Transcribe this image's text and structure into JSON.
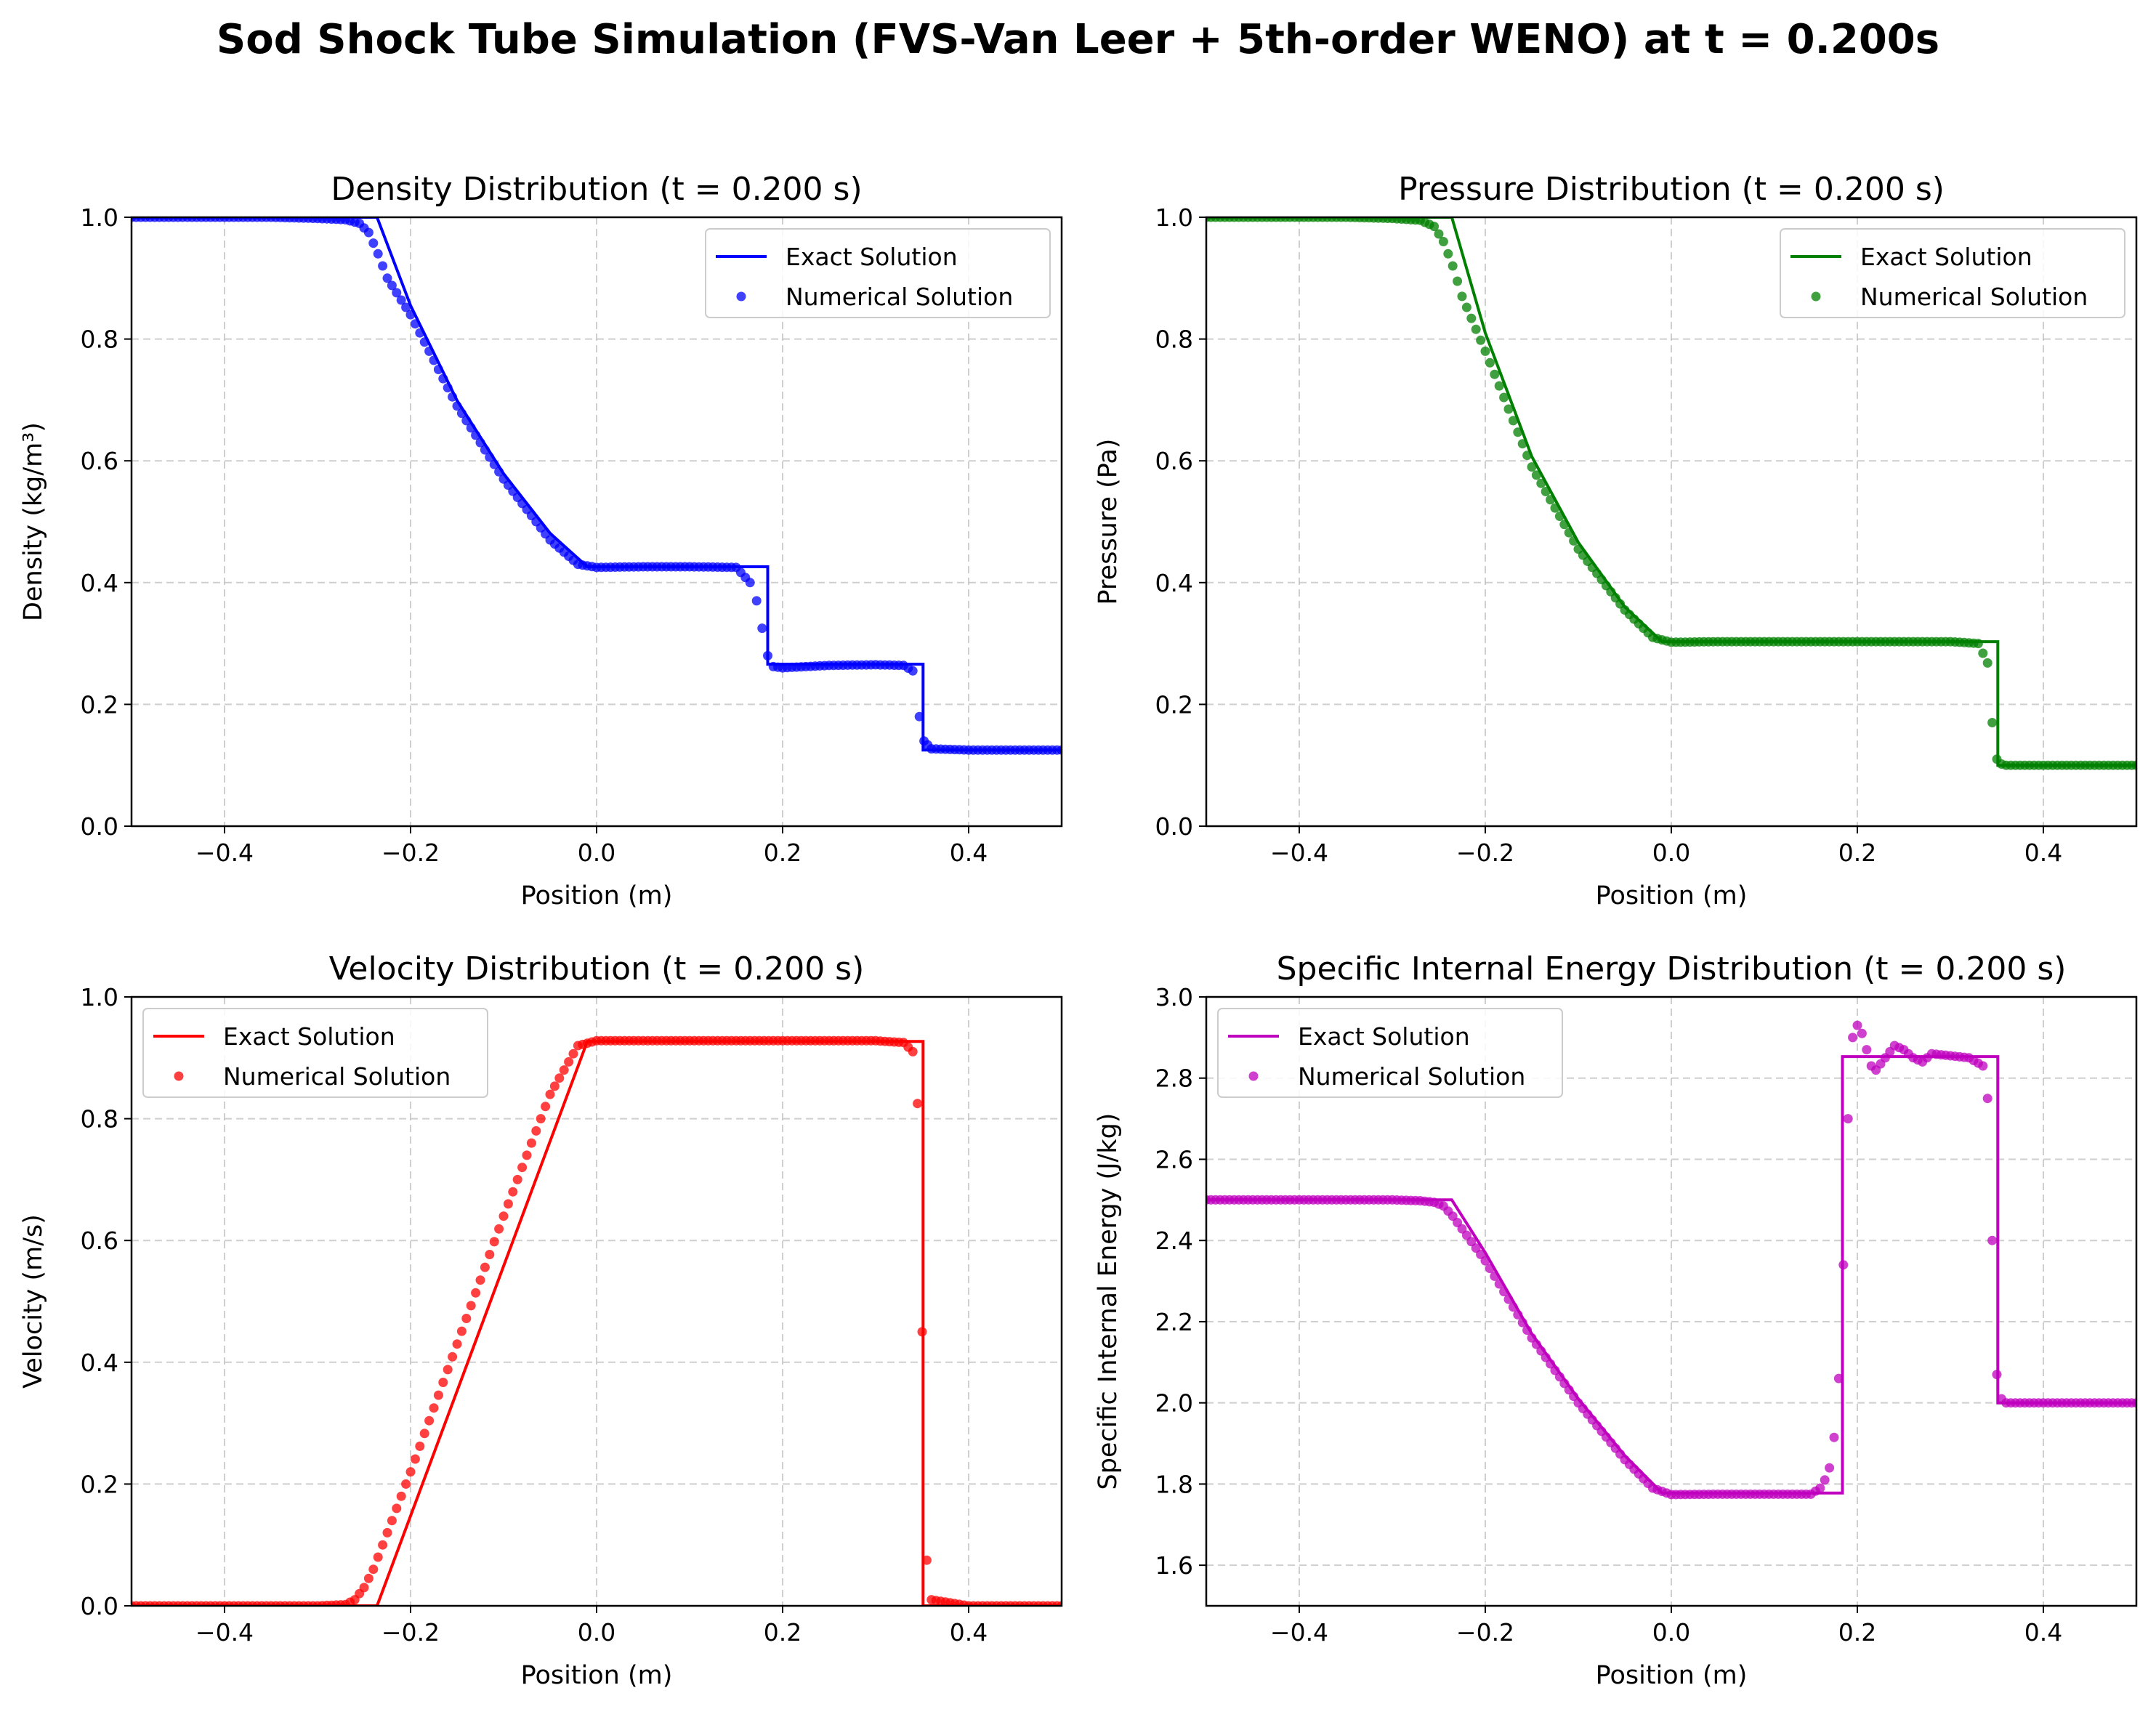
{
  "figure_title": "Sod Shock Tube Simulation (FVS-Van Leer + 5th-order WENO) at t = 0.200s",
  "legend_labels": {
    "exact": "Exact Solution",
    "numerical": "Numerical Solution"
  },
  "chart_data": [
    {
      "type": "line",
      "title": "Density Distribution (t = 0.200 s)",
      "xlabel": "Position (m)",
      "ylabel": "Density (kg/m³)",
      "color": "#0000ff",
      "xlim": [
        -0.5,
        0.5
      ],
      "ylim": [
        0.0,
        1.0
      ],
      "xticks": [
        -0.4,
        -0.2,
        0.0,
        0.2,
        0.4
      ],
      "xtick_labels": [
        "−0.4",
        "−0.2",
        "0.0",
        "0.2",
        "0.4"
      ],
      "yticks": [
        0.0,
        0.2,
        0.4,
        0.6,
        0.8,
        1.0
      ],
      "ytick_labels": [
        "0.0",
        "0.2",
        "0.4",
        "0.6",
        "0.8",
        "1.0"
      ],
      "grid": true,
      "legend_position": "upper-right",
      "series": [
        {
          "name": "Exact Solution",
          "style": "line",
          "x": [
            -0.5,
            -0.236,
            -0.2,
            -0.15,
            -0.1,
            -0.05,
            -0.01,
            0.184,
            0.184,
            0.351,
            0.351,
            0.5
          ],
          "y": [
            1.0,
            1.0,
            0.855,
            0.699,
            0.579,
            0.481,
            0.426,
            0.426,
            0.266,
            0.266,
            0.125,
            0.125
          ]
        },
        {
          "name": "Numerical Solution",
          "style": "markers",
          "x": [
            -0.5,
            -0.45,
            -0.4,
            -0.35,
            -0.3,
            -0.27,
            -0.255,
            -0.245,
            -0.235,
            -0.225,
            -0.2,
            -0.15,
            -0.1,
            -0.05,
            -0.02,
            0.0,
            0.05,
            0.1,
            0.15,
            0.165,
            0.172,
            0.178,
            0.184,
            0.19,
            0.2,
            0.25,
            0.3,
            0.33,
            0.34,
            0.347,
            0.352,
            0.36,
            0.4,
            0.45,
            0.5
          ],
          "y": [
            1.0,
            1.0,
            1.0,
            1.0,
            0.998,
            0.996,
            0.99,
            0.975,
            0.94,
            0.9,
            0.84,
            0.69,
            0.57,
            0.47,
            0.43,
            0.425,
            0.426,
            0.426,
            0.425,
            0.4,
            0.37,
            0.325,
            0.28,
            0.262,
            0.26,
            0.264,
            0.265,
            0.264,
            0.255,
            0.18,
            0.14,
            0.127,
            0.125,
            0.125,
            0.125
          ]
        }
      ]
    },
    {
      "type": "line",
      "title": "Pressure Distribution (t = 0.200 s)",
      "xlabel": "Position (m)",
      "ylabel": "Pressure (Pa)",
      "color": "#008000",
      "xlim": [
        -0.5,
        0.5
      ],
      "ylim": [
        0.0,
        1.0
      ],
      "xticks": [
        -0.4,
        -0.2,
        0.0,
        0.2,
        0.4
      ],
      "xtick_labels": [
        "−0.4",
        "−0.2",
        "0.0",
        "0.2",
        "0.4"
      ],
      "yticks": [
        0.0,
        0.2,
        0.4,
        0.6,
        0.8,
        1.0
      ],
      "ytick_labels": [
        "0.0",
        "0.2",
        "0.4",
        "0.6",
        "0.8",
        "1.0"
      ],
      "grid": true,
      "legend_position": "upper-right",
      "series": [
        {
          "name": "Exact Solution",
          "style": "line",
          "x": [
            -0.5,
            -0.236,
            -0.2,
            -0.15,
            -0.1,
            -0.05,
            -0.01,
            0.351,
            0.351,
            0.5
          ],
          "y": [
            1.0,
            1.0,
            0.81,
            0.607,
            0.466,
            0.36,
            0.303,
            0.303,
            0.1,
            0.1
          ]
        },
        {
          "name": "Numerical Solution",
          "style": "markers",
          "x": [
            -0.5,
            -0.45,
            -0.4,
            -0.35,
            -0.3,
            -0.27,
            -0.255,
            -0.245,
            -0.235,
            -0.225,
            -0.2,
            -0.15,
            -0.1,
            -0.05,
            -0.02,
            0.0,
            0.05,
            0.1,
            0.15,
            0.2,
            0.25,
            0.3,
            0.33,
            0.34,
            0.345,
            0.35,
            0.355,
            0.36,
            0.4,
            0.45,
            0.5
          ],
          "y": [
            1.0,
            1.0,
            1.0,
            1.0,
            0.998,
            0.995,
            0.985,
            0.96,
            0.92,
            0.87,
            0.78,
            0.59,
            0.455,
            0.355,
            0.31,
            0.302,
            0.303,
            0.303,
            0.303,
            0.303,
            0.303,
            0.303,
            0.3,
            0.268,
            0.17,
            0.11,
            0.102,
            0.1,
            0.1,
            0.1,
            0.1
          ]
        }
      ]
    },
    {
      "type": "line",
      "title": "Velocity Distribution (t = 0.200 s)",
      "xlabel": "Position (m)",
      "ylabel": "Velocity (m/s)",
      "color": "#ff0000",
      "xlim": [
        -0.5,
        0.5
      ],
      "ylim": [
        0.0,
        1.0
      ],
      "xticks": [
        -0.4,
        -0.2,
        0.0,
        0.2,
        0.4
      ],
      "xtick_labels": [
        "−0.4",
        "−0.2",
        "0.0",
        "0.2",
        "0.4"
      ],
      "yticks": [
        0.0,
        0.2,
        0.4,
        0.6,
        0.8,
        1.0
      ],
      "ytick_labels": [
        "0.0",
        "0.2",
        "0.4",
        "0.6",
        "0.8",
        "1.0"
      ],
      "grid": true,
      "legend_position": "upper-left",
      "series": [
        {
          "name": "Exact Solution",
          "style": "line",
          "x": [
            -0.5,
            -0.236,
            -0.01,
            0.351,
            0.351,
            0.5
          ],
          "y": [
            0.0,
            0.0,
            0.927,
            0.927,
            0.0,
            0.0
          ]
        },
        {
          "name": "Numerical Solution",
          "style": "markers",
          "x": [
            -0.5,
            -0.4,
            -0.3,
            -0.27,
            -0.26,
            -0.25,
            -0.24,
            -0.2,
            -0.15,
            -0.1,
            -0.05,
            -0.02,
            0.0,
            0.05,
            0.1,
            0.15,
            0.2,
            0.25,
            0.3,
            0.33,
            0.34,
            0.345,
            0.35,
            0.355,
            0.36,
            0.4,
            0.5
          ],
          "y": [
            0.0,
            0.0,
            0.0,
            0.002,
            0.01,
            0.03,
            0.06,
            0.22,
            0.43,
            0.64,
            0.84,
            0.92,
            0.928,
            0.928,
            0.928,
            0.928,
            0.928,
            0.928,
            0.928,
            0.925,
            0.91,
            0.825,
            0.45,
            0.075,
            0.01,
            0.0,
            0.0
          ]
        }
      ]
    },
    {
      "type": "line",
      "title": "Specific Internal Energy Distribution (t = 0.200 s)",
      "xlabel": "Position (m)",
      "ylabel": "Specific Internal Energy (J/kg)",
      "color": "#bf00bf",
      "xlim": [
        -0.5,
        0.5
      ],
      "ylim": [
        1.5,
        3.0
      ],
      "xticks": [
        -0.4,
        -0.2,
        0.0,
        0.2,
        0.4
      ],
      "xtick_labels": [
        "−0.4",
        "−0.2",
        "0.0",
        "0.2",
        "0.4"
      ],
      "yticks": [
        1.6,
        1.8,
        2.0,
        2.2,
        2.4,
        2.6,
        2.8,
        3.0
      ],
      "ytick_labels": [
        "1.6",
        "1.8",
        "2.0",
        "2.2",
        "2.4",
        "2.6",
        "2.8",
        "3.0"
      ],
      "grid": true,
      "legend_position": "upper-left",
      "series": [
        {
          "name": "Exact Solution",
          "style": "line",
          "x": [
            -0.5,
            -0.236,
            -0.2,
            -0.15,
            -0.1,
            -0.05,
            -0.01,
            0.184,
            0.184,
            0.351,
            0.351,
            0.5
          ],
          "y": [
            2.5,
            2.5,
            2.37,
            2.17,
            2.01,
            1.87,
            1.778,
            1.778,
            2.853,
            2.853,
            2.0,
            2.0
          ]
        },
        {
          "name": "Numerical Solution",
          "style": "markers",
          "x": [
            -0.5,
            -0.45,
            -0.4,
            -0.35,
            -0.3,
            -0.27,
            -0.255,
            -0.245,
            -0.235,
            -0.2,
            -0.15,
            -0.1,
            -0.05,
            -0.02,
            0.0,
            0.05,
            0.1,
            0.15,
            0.16,
            0.165,
            0.17,
            0.175,
            0.18,
            0.185,
            0.19,
            0.195,
            0.2,
            0.205,
            0.21,
            0.215,
            0.22,
            0.23,
            0.24,
            0.25,
            0.26,
            0.27,
            0.28,
            0.3,
            0.32,
            0.335,
            0.34,
            0.345,
            0.35,
            0.355,
            0.36,
            0.4,
            0.45,
            0.5
          ],
          "y": [
            2.5,
            2.5,
            2.5,
            2.5,
            2.5,
            2.498,
            2.494,
            2.485,
            2.46,
            2.35,
            2.16,
            2.0,
            1.86,
            1.79,
            1.774,
            1.775,
            1.775,
            1.775,
            1.79,
            1.81,
            1.84,
            1.915,
            2.06,
            2.34,
            2.7,
            2.9,
            2.93,
            2.91,
            2.87,
            2.83,
            2.82,
            2.85,
            2.88,
            2.87,
            2.85,
            2.84,
            2.86,
            2.855,
            2.85,
            2.83,
            2.75,
            2.4,
            2.07,
            2.01,
            2.0,
            2.0,
            2.0,
            2.0
          ]
        }
      ]
    }
  ]
}
